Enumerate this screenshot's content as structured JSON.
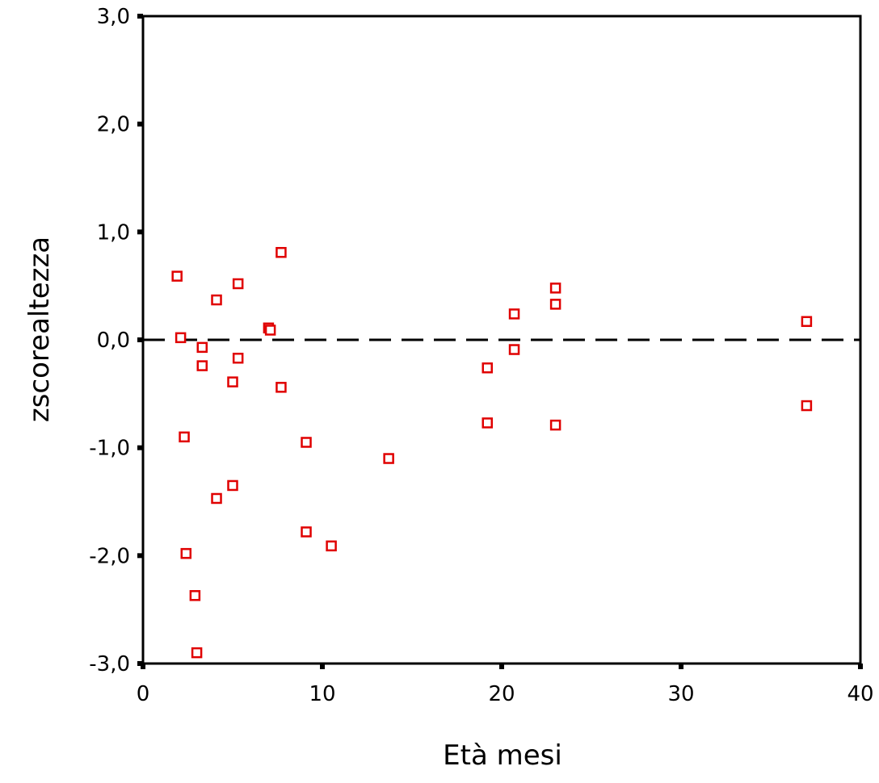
{
  "chart_data": {
    "type": "scatter",
    "xlabel": "Età mesi",
    "ylabel": "zscorealtezza",
    "xlim": [
      0,
      40
    ],
    "ylim": [
      -3,
      3
    ],
    "xticks": [
      {
        "value": 0,
        "label": "0"
      },
      {
        "value": 10,
        "label": "10"
      },
      {
        "value": 20,
        "label": "20"
      },
      {
        "value": 30,
        "label": "30"
      },
      {
        "value": 40,
        "label": "40"
      }
    ],
    "yticks": [
      {
        "value": 3,
        "label": "3,0"
      },
      {
        "value": 2,
        "label": "2,0"
      },
      {
        "value": 1,
        "label": "1,0"
      },
      {
        "value": 0,
        "label": "0,0"
      },
      {
        "value": -1,
        "label": "-1,0"
      },
      {
        "value": -2,
        "label": "-2,0"
      },
      {
        "value": -3,
        "label": "-3,0"
      }
    ],
    "reference_line": {
      "y": 0,
      "style": "dashed"
    },
    "grid": false,
    "marker": "open-square",
    "marker_color": "#e00000",
    "points": [
      {
        "x": 1.9,
        "y": 0.59
      },
      {
        "x": 2.1,
        "y": 0.02
      },
      {
        "x": 2.3,
        "y": -0.9
      },
      {
        "x": 2.4,
        "y": -1.98
      },
      {
        "x": 2.9,
        "y": -2.37
      },
      {
        "x": 3.0,
        "y": -2.9
      },
      {
        "x": 3.3,
        "y": -0.07
      },
      {
        "x": 3.3,
        "y": -0.24
      },
      {
        "x": 4.1,
        "y": 0.37
      },
      {
        "x": 4.1,
        "y": -1.47
      },
      {
        "x": 5.0,
        "y": -0.39
      },
      {
        "x": 5.0,
        "y": -1.35
      },
      {
        "x": 5.3,
        "y": 0.52
      },
      {
        "x": 5.3,
        "y": -0.17
      },
      {
        "x": 7.0,
        "y": 0.11
      },
      {
        "x": 7.1,
        "y": 0.09
      },
      {
        "x": 7.7,
        "y": 0.81
      },
      {
        "x": 7.7,
        "y": -0.44
      },
      {
        "x": 9.1,
        "y": -0.95
      },
      {
        "x": 9.1,
        "y": -1.78
      },
      {
        "x": 10.5,
        "y": -1.91
      },
      {
        "x": 13.7,
        "y": -1.1
      },
      {
        "x": 19.2,
        "y": -0.26
      },
      {
        "x": 19.2,
        "y": -0.77
      },
      {
        "x": 20.7,
        "y": 0.24
      },
      {
        "x": 20.7,
        "y": -0.09
      },
      {
        "x": 23.0,
        "y": 0.48
      },
      {
        "x": 23.0,
        "y": 0.33
      },
      {
        "x": 23.0,
        "y": -0.79
      },
      {
        "x": 37.0,
        "y": 0.17
      },
      {
        "x": 37.0,
        "y": -0.61
      }
    ]
  }
}
